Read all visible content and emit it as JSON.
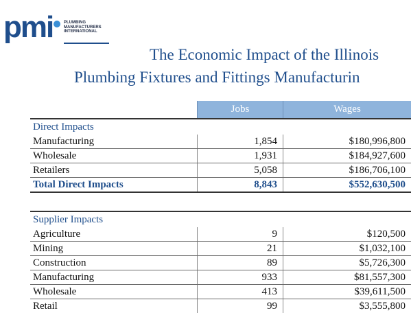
{
  "logo": {
    "letters": "pmi",
    "line1": "PLUMBING",
    "line2": "MANUFACTURERS",
    "line3": "INTERNATIONAL"
  },
  "title": {
    "line1": "The Economic Impact of the Illinois",
    "line2": "Plumbing Fixtures and Fittings Manufacturin"
  },
  "columns": {
    "jobs": "Jobs",
    "wages": "Wages"
  },
  "direct": {
    "heading": "Direct Impacts",
    "rows": [
      {
        "label": "Manufacturing",
        "jobs": "1,854",
        "wages": "$180,996,800"
      },
      {
        "label": "Wholesale",
        "jobs": "1,931",
        "wages": "$184,927,600"
      },
      {
        "label": "Retailers",
        "jobs": "5,058",
        "wages": "$186,706,100"
      }
    ],
    "total": {
      "label": "Total Direct Impacts",
      "jobs": "8,843",
      "wages": "$552,630,500"
    }
  },
  "supplier": {
    "heading": "Supplier Impacts",
    "rows": [
      {
        "label": "Agriculture",
        "jobs": "9",
        "wages": "$120,500"
      },
      {
        "label": "Mining",
        "jobs": "21",
        "wages": "$1,032,100"
      },
      {
        "label": "Construction",
        "jobs": "89",
        "wages": "$5,726,300"
      },
      {
        "label": "Manufacturing",
        "jobs": "933",
        "wages": "$81,557,300"
      },
      {
        "label": "Wholesale",
        "jobs": "413",
        "wages": "$39,611,500"
      },
      {
        "label": "Retail",
        "jobs": "99",
        "wages": "$3,555,800"
      }
    ]
  }
}
